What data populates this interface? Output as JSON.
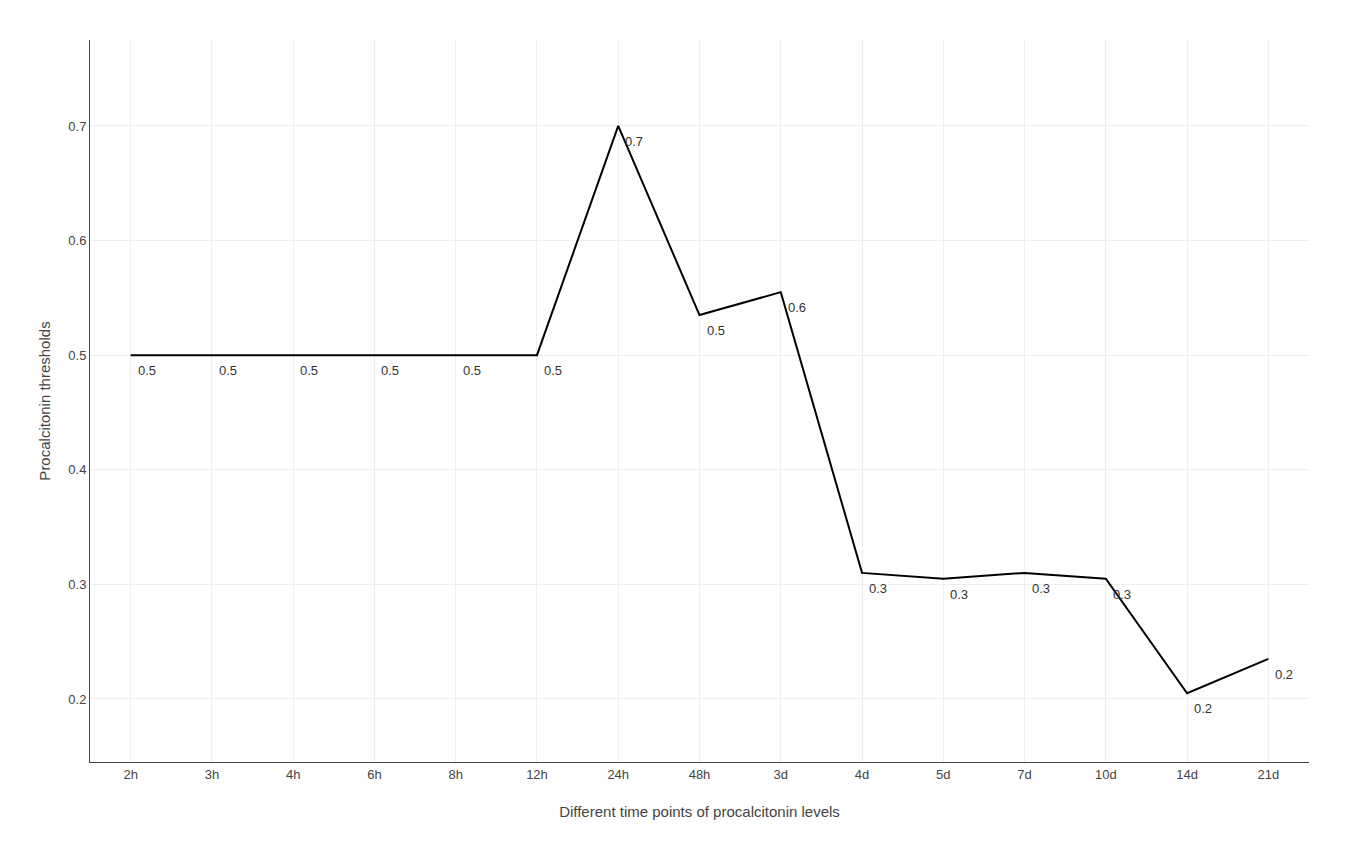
{
  "chart_data": {
    "type": "line",
    "categories": [
      "2h",
      "3h",
      "4h",
      "6h",
      "8h",
      "12h",
      "24h",
      "48h",
      "3d",
      "4d",
      "5d",
      "7d",
      "10d",
      "14d",
      "21d"
    ],
    "values": [
      0.5,
      0.5,
      0.5,
      0.5,
      0.5,
      0.5,
      0.7,
      0.535,
      0.555,
      0.31,
      0.305,
      0.31,
      0.305,
      0.205,
      0.235
    ],
    "value_labels": [
      "0.5",
      "0.5",
      "0.5",
      "0.5",
      "0.5",
      "0.5",
      "0.7",
      "0.5",
      "0.6",
      "0.3",
      "0.3",
      "0.3",
      "0.3",
      "0.2",
      "0.2"
    ],
    "data_labels": true,
    "xlabel": "Different time points of procalcitonin levels",
    "ylabel": "Procalcitonin thresholds",
    "color": "#000000",
    "ylim": [
      0.145,
      0.775
    ],
    "yticks": [
      0.2,
      0.3,
      0.4,
      0.5,
      0.6,
      0.7
    ],
    "grid": true
  }
}
